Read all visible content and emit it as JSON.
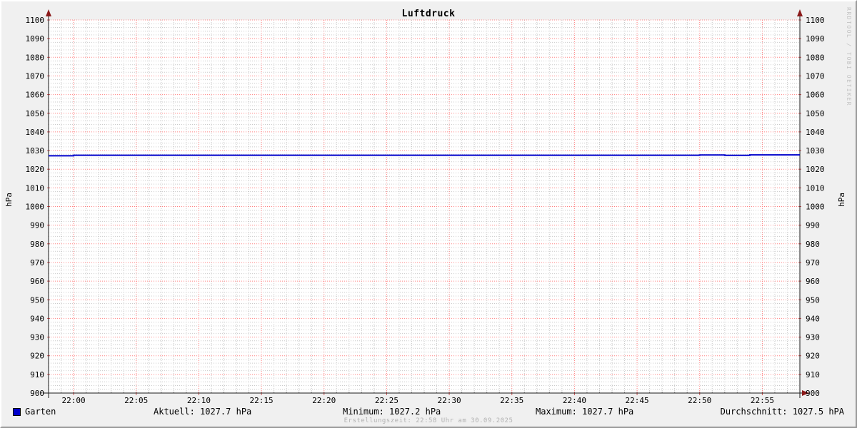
{
  "title": "Luftdruck",
  "watermark": "RRDTOOL / TOBI OETIKER",
  "footer": "Erstellungszeit: 22:58 Uhr am 30.09.2025",
  "axis": {
    "y_label_left": "hPa",
    "y_label_right": "hPa"
  },
  "legend": {
    "series_label": "Garten",
    "aktuell": "Aktuell: 1027.7 hPa",
    "minimum": "Minimum: 1027.2 hPa",
    "maximum": "Maximum: 1027.7 hPa",
    "durchschnitt": "Durchschnitt: 1027.5 hPA"
  },
  "colors": {
    "series": "#0000cc",
    "major_grid": "#ff8080",
    "minor_grid": "#c9c9c9",
    "axis": "#1a1a1a",
    "arrow": "#8b1a1a",
    "tick_major": "#d05050",
    "tick_minor": "#999999",
    "plot_background": "#ffffff",
    "canvas_background": "#f0f0f0"
  },
  "chart_data": {
    "type": "line",
    "title": "Luftdruck",
    "xlabel": "",
    "ylabel": "hPa",
    "ylim": [
      900,
      1100
    ],
    "y_tick_step": 10,
    "y_minor_step": 2,
    "x_start": "21:58",
    "x_end": "22:58",
    "x_ticks": [
      "22:00",
      "22:05",
      "22:10",
      "22:15",
      "22:20",
      "22:25",
      "22:30",
      "22:35",
      "22:40",
      "22:45",
      "22:50",
      "22:55"
    ],
    "x_minor_step_minutes": 1,
    "grid": true,
    "legend_position": "bottom",
    "series": [
      {
        "name": "Garten",
        "color": "#0000cc",
        "points": [
          [
            "21:58",
            1027.2
          ],
          [
            "22:00",
            1027.2
          ],
          [
            "22:00",
            1027.5
          ],
          [
            "22:50",
            1027.5
          ],
          [
            "22:50",
            1027.6
          ],
          [
            "22:52",
            1027.6
          ],
          [
            "22:52",
            1027.4
          ],
          [
            "22:54",
            1027.4
          ],
          [
            "22:54",
            1027.7
          ],
          [
            "22:58",
            1027.7
          ]
        ]
      }
    ],
    "stats": {
      "aktuell_hpa": 1027.7,
      "minimum_hpa": 1027.2,
      "maximum_hpa": 1027.7,
      "durchschnitt_hpa": 1027.5
    }
  }
}
